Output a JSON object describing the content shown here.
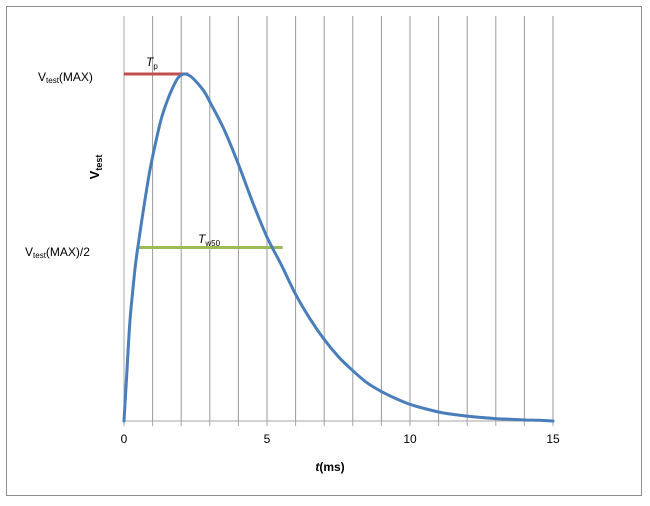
{
  "chart_data": {
    "type": "line",
    "title": "",
    "xlabel": "t(ms)",
    "xlabel_italic_part": "t",
    "xlabel_unit_part": "(ms)",
    "ylabel": "Vtest",
    "ylabel_main": "V",
    "ylabel_sub": "test",
    "xlim": [
      0,
      15
    ],
    "ylim": [
      0,
      1
    ],
    "xticks": [
      0,
      5,
      10,
      15
    ],
    "xtick_labels": [
      "0",
      "5",
      "10",
      "15"
    ],
    "vertical_gridlines_every": 1,
    "grid": true,
    "legend": "none",
    "series": [
      {
        "color": "#4a7ebb",
        "x": [
          0,
          0.1,
          0.2,
          0.3,
          0.4,
          0.5,
          0.7,
          0.9,
          1.1,
          1.3,
          1.5,
          1.7,
          1.9,
          2.1,
          2.3,
          2.5,
          2.8,
          3.0,
          3.5,
          4.0,
          4.5,
          5.0,
          5.5,
          6.0,
          6.5,
          7.0,
          7.5,
          8.0,
          8.5,
          9.0,
          9.5,
          10.0,
          10.5,
          11.0,
          11.5,
          12.0,
          12.5,
          13.0,
          13.5,
          14.0,
          14.5,
          15.0
        ],
        "y": [
          0.0,
          0.14,
          0.28,
          0.37,
          0.45,
          0.51,
          0.62,
          0.72,
          0.8,
          0.87,
          0.92,
          0.96,
          0.99,
          1.0,
          0.995,
          0.98,
          0.95,
          0.92,
          0.84,
          0.74,
          0.63,
          0.53,
          0.45,
          0.365,
          0.295,
          0.235,
          0.185,
          0.145,
          0.11,
          0.085,
          0.065,
          0.048,
          0.036,
          0.026,
          0.019,
          0.014,
          0.01,
          0.007,
          0.005,
          0.003,
          0.002,
          0.0
        ]
      }
    ],
    "annotations": {
      "max_label_main": "V",
      "max_label_sub": "test",
      "max_label_suffix": "(MAX)",
      "half_label_main": "V",
      "half_label_sub": "test",
      "half_label_suffix": "(MAX)/2",
      "tp_label_main": "T",
      "tp_label_sub": "p",
      "tw_label_main": "T",
      "tw_label_sub": "w50",
      "tp_line": {
        "x_start": 0,
        "x_end": 2.25,
        "y": 1.0,
        "color": "#c0504d"
      },
      "tw_line": {
        "x_start": 0.5,
        "x_end": 5.55,
        "y": 0.5,
        "color": "#9bbb59"
      }
    },
    "gridline_color": "#999999",
    "axis_color": "#a6a6a6"
  }
}
